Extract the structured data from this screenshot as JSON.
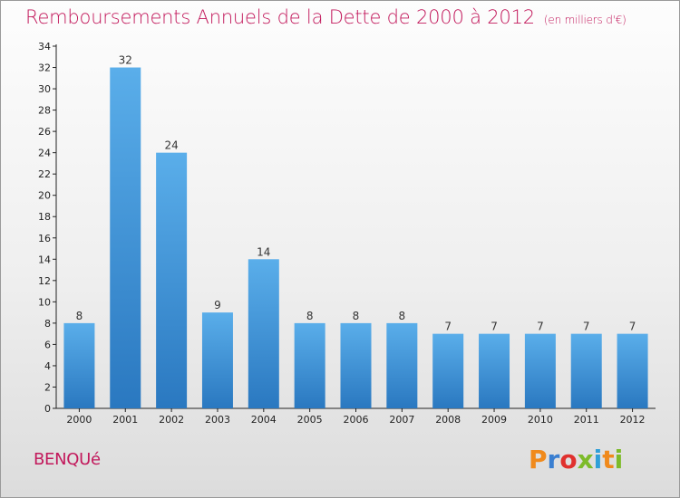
{
  "chart_data": {
    "type": "bar",
    "title": "Remboursements Annuels de la Dette de 2000 à 2012",
    "unit": "(en milliers d'€)",
    "categories": [
      "2000",
      "2001",
      "2002",
      "2003",
      "2004",
      "2005",
      "2006",
      "2007",
      "2008",
      "2009",
      "2010",
      "2011",
      "2012"
    ],
    "values": [
      8,
      32,
      24,
      9,
      14,
      8,
      8,
      8,
      7,
      7,
      7,
      7,
      7
    ],
    "ylim": [
      0,
      34
    ],
    "yticks": [
      0,
      2,
      4,
      6,
      8,
      10,
      12,
      14,
      16,
      18,
      20,
      22,
      24,
      26,
      28,
      30,
      32,
      34
    ],
    "grid": false,
    "bar_color": "#3d8fd6"
  },
  "city": "BENQUé",
  "logo": {
    "text": "Proxiti",
    "colors": [
      "#f08a1c",
      "#3a7fd1",
      "#e0312e",
      "#7dbb2a",
      "#2f9fd8",
      "#f08a1c",
      "#7dbb2a"
    ]
  }
}
